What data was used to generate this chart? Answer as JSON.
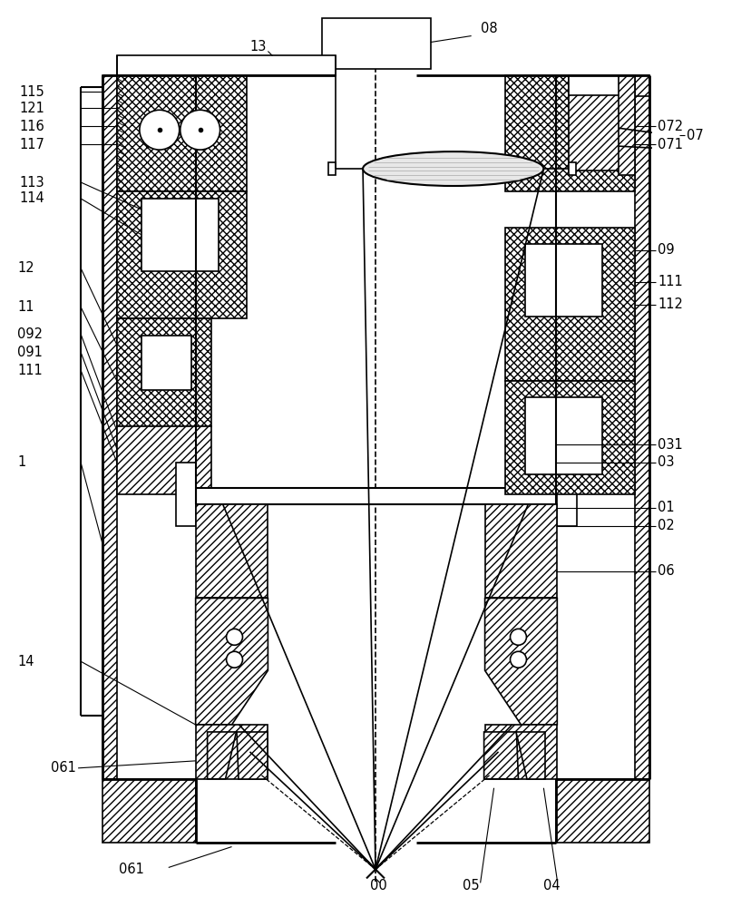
{
  "bg_color": "#ffffff",
  "line_color": "#000000",
  "figsize": [
    8.29,
    10.0
  ],
  "dpi": 100
}
